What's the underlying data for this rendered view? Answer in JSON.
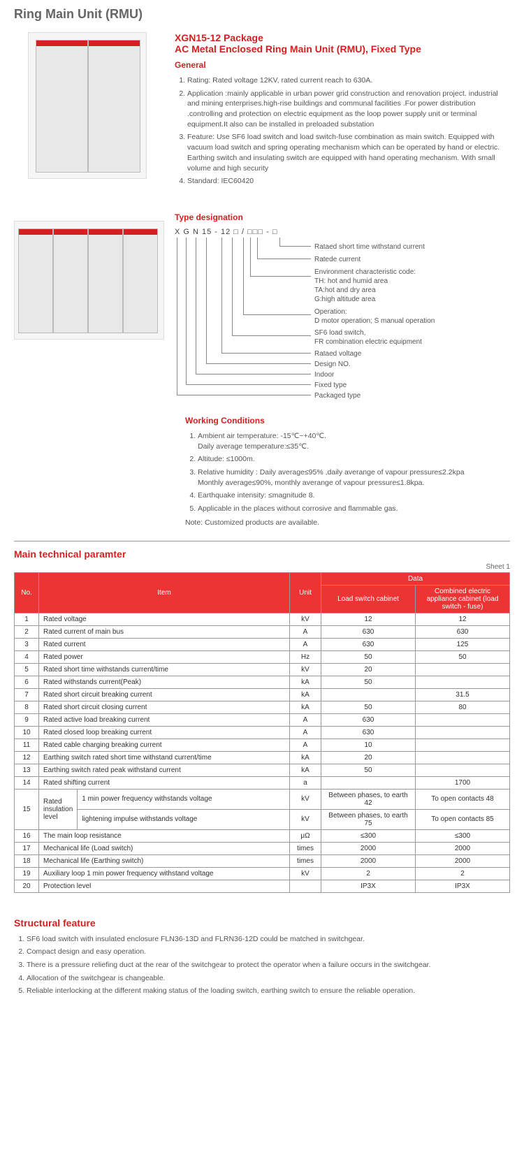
{
  "page_title": "Ring Main Unit (RMU)",
  "product_title_1": "XGN15-12 Package",
  "product_title_2": "AC Metal Enclosed Ring Main Unit (RMU), Fixed Type",
  "general_heading": "General",
  "general_items": [
    "Rating: Rated voltage 12KV, rated current reach to 630A.",
    "Application :mainly applicable in urban power grid construction and renovation project. industrial and mining enterprises.high-rise buildings and communal facilities .For power distribution .controlling and protection on electric equipment as the loop power supply unit or terminal equipment.It also can be installed in preloaded substation",
    "Feature: Use SF6 load switch and load switch-fuse combination as main switch. Equipped with vacuum load switch and spring operating mechanism which can be operated by hand or electric. Earthing switch and insulating switch are equipped with hand operating mechanism. With small volume and high security",
    "Standard: IEC60420"
  ],
  "type_designation_heading": "Type designation",
  "type_code": "X  G  N  15 - 12 □ / □□□    -  □",
  "type_labels": [
    "Rataed short time withstand current",
    "Ratede current",
    "Environment characteristic code:\nTH: hot and humid area\nTA:hot and dry area\nG:high altitude area",
    "Operation:\nD motor operation; S manual operation",
    "SF6 load switch,\nFR combination electric equipment",
    "Rataed voltage",
    "Design NO.",
    "Indoor",
    "Fixed type",
    "Packaged type"
  ],
  "working_heading": "Working Conditions",
  "working_items": [
    "Ambient air temperature: -15℃~+40℃.\nDaily average temperature:≤35℃.",
    "Altitude: ≤1000m.",
    "Relative humidity : Daily average≤95% ,daily averange of vapour pressure≤2.2kpa\nMonthly average≤90%,  monthly averange of vapour pressure≤1.8kpa.",
    "Earthquake intensity: ≤magnitude 8.",
    "Applicable in the places without corrosive and flammable gas."
  ],
  "working_note": "Note: Customized products are available.",
  "table_heading": "Main technical paramter",
  "sheet_label": "Sheet 1",
  "table_headers": {
    "no": "No.",
    "item": "Item",
    "unit": "Unit",
    "data": "Data",
    "col1": "Load switch cabinet",
    "col2": "Combined electric appliance cabinet (load switch - fuse)"
  },
  "table_rows": [
    {
      "no": "1",
      "item": "Rated voltage",
      "unit": "kV",
      "c1": "12",
      "c2": "12"
    },
    {
      "no": "2",
      "item": "Rated current of main bus",
      "unit": "A",
      "c1": "630",
      "c2": "630"
    },
    {
      "no": "3",
      "item": "Rated current",
      "unit": "A",
      "c1": "630",
      "c2": "125"
    },
    {
      "no": "4",
      "item": "Rated power",
      "unit": "Hz",
      "c1": "50",
      "c2": "50"
    },
    {
      "no": "5",
      "item": "Rated short time withstands current/time",
      "unit": "kV",
      "c1": "20",
      "c2": ""
    },
    {
      "no": "6",
      "item": "Rated withstands current(Peak)",
      "unit": "kA",
      "c1": "50",
      "c2": ""
    },
    {
      "no": "7",
      "item": "Rated short circuit breaking current",
      "unit": "kA",
      "c1": "",
      "c2": "31.5"
    },
    {
      "no": "8",
      "item": "Rated short circuit closing current",
      "unit": "kA",
      "c1": "50",
      "c2": "80"
    },
    {
      "no": "9",
      "item": "Rated active load breaking current",
      "unit": "A",
      "c1": "630",
      "c2": ""
    },
    {
      "no": "10",
      "item": "Rated closed loop breaking current",
      "unit": "A",
      "c1": "630",
      "c2": ""
    },
    {
      "no": "11",
      "item": "Rated cable charging breaking current",
      "unit": "A",
      "c1": "10",
      "c2": ""
    },
    {
      "no": "12",
      "item": "Earthing switch rated short time withstand current/time",
      "unit": "kA",
      "c1": "20",
      "c2": ""
    },
    {
      "no": "13",
      "item": "Earthing switch rated peak withstand current",
      "unit": "kA",
      "c1": "50",
      "c2": ""
    },
    {
      "no": "14",
      "item": "Rated shifting current",
      "unit": "a",
      "c1": "",
      "c2": "1700"
    }
  ],
  "row15_label": "Rated insulation level",
  "row15a": {
    "item": "1 min power frequency withstands voltage",
    "unit": "kV",
    "c1": "Between phases, to earth 42",
    "c2": "To open contacts 48"
  },
  "row15b": {
    "item": "lightening impulse withstands voltage",
    "unit": "kV",
    "c1": "Between phases, to earth 75",
    "c2": "To open contacts 85"
  },
  "table_rows2": [
    {
      "no": "16",
      "item": "The main loop resistance",
      "unit": "μΩ",
      "c1": "≤300",
      "c2": "≤300"
    },
    {
      "no": "17",
      "item": "Mechanical life (Load switch)",
      "unit": "times",
      "c1": "2000",
      "c2": "2000"
    },
    {
      "no": "18",
      "item": "Mechanical life (Earthing switch)",
      "unit": "times",
      "c1": "2000",
      "c2": "2000"
    },
    {
      "no": "19",
      "item": "Auxiliary loop 1 min power frequency withstand voltage",
      "unit": "kV",
      "c1": "2",
      "c2": "2"
    },
    {
      "no": "20",
      "item": "Protection level",
      "unit": "",
      "c1": "IP3X",
      "c2": "IP3X"
    }
  ],
  "structural_heading": "Structural feature",
  "structural_items": [
    "SF6 load switch with insulated enclosure FLN36-13D and FLRN36-12D could be matched in switchgear.",
    "Compact design and easy operation.",
    "There is a pressure reliefing duct at the rear of the switchgear to protect the operator when a failure occurs in the switchgear.",
    "Allocation of the switchgear is changeable.",
    "Reliable interlocking at the different making status of the loading switch, earthing switch to ensure the reliable operation."
  ]
}
